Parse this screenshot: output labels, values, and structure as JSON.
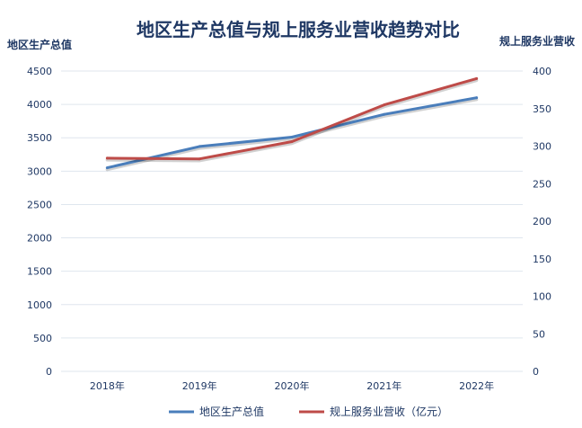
{
  "chart_data": {
    "type": "line",
    "title": "地区生产总值与规上服务业营收趋势对比",
    "categories": [
      "2018年",
      "2019年",
      "2020年",
      "2021年",
      "2022年"
    ],
    "y_left": {
      "label": "地区生产总值",
      "ylim": [
        0,
        4500
      ],
      "ticks": [
        0,
        500,
        1000,
        1500,
        2000,
        2500,
        3000,
        3500,
        4000,
        4500
      ]
    },
    "y_right": {
      "label": "规上服务业营收",
      "ylim": [
        0,
        400
      ],
      "ticks": [
        0,
        50,
        100,
        150,
        200,
        250,
        300,
        350,
        400
      ]
    },
    "series": [
      {
        "name": "地区生产总值",
        "axis": "left",
        "color": "#4a7ebb",
        "values": [
          3050,
          3370,
          3510,
          3850,
          4100
        ]
      },
      {
        "name": "规上服务业营收（亿元）",
        "axis": "right",
        "color": "#be4b48",
        "values": [
          284,
          283,
          306,
          355,
          390
        ]
      }
    ],
    "grid": true,
    "legend_position": "bottom"
  }
}
